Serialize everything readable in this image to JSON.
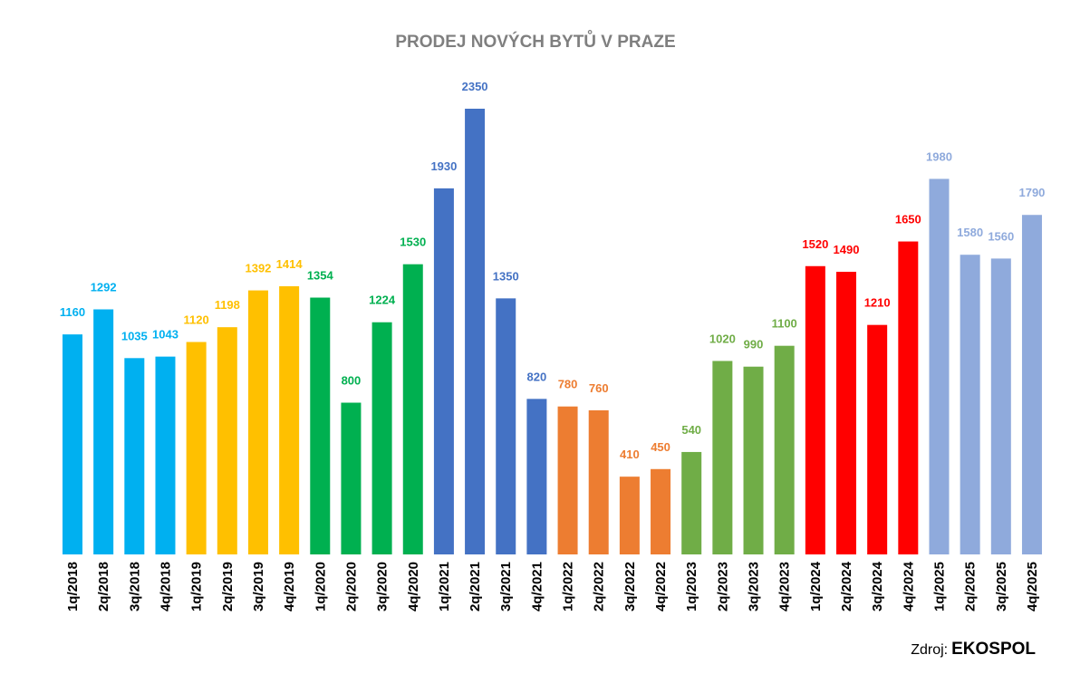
{
  "chart_data": {
    "type": "bar",
    "title": "PRODEJ NOVÝCH BYTŮ V PRAZE",
    "xlabel": "",
    "ylabel": "",
    "ylim": [
      0,
      2350
    ],
    "grid": false,
    "legend": "none",
    "categories": [
      "1q/2018",
      "2q/2018",
      "3q/2018",
      "4q/2018",
      "1q/2019",
      "2q/2019",
      "3q/2019",
      "4q/2019",
      "1q/2020",
      "2q/2020",
      "3q/2020",
      "4q/2020",
      "1q/2021",
      "2q/2021",
      "3q/2021",
      "4q/2021",
      "1q/2022",
      "2q/2022",
      "3q/2022",
      "4q/2022",
      "1q/2023",
      "2q/2023",
      "3q/2023",
      "4q/2023",
      "1q/2024",
      "2q/2024",
      "3q/2024",
      "4q/2024",
      "1q/2025",
      "2q/2025",
      "3q/2025",
      "4q/2025"
    ],
    "values": [
      1160,
      1292,
      1035,
      1043,
      1120,
      1198,
      1392,
      1414,
      1354,
      800,
      1224,
      1530,
      1930,
      2350,
      1350,
      820,
      780,
      760,
      410,
      450,
      540,
      1020,
      990,
      1100,
      1520,
      1490,
      1210,
      1650,
      1980,
      1580,
      1560,
      1790
    ],
    "bar_colors": [
      "#00b0f0",
      "#00b0f0",
      "#00b0f0",
      "#00b0f0",
      "#ffc000",
      "#ffc000",
      "#ffc000",
      "#ffc000",
      "#00b050",
      "#00b050",
      "#00b050",
      "#00b050",
      "#4472c4",
      "#4472c4",
      "#4472c4",
      "#4472c4",
      "#ed7d31",
      "#ed7d31",
      "#ed7d31",
      "#ed7d31",
      "#70ad47",
      "#70ad47",
      "#70ad47",
      "#70ad47",
      "#ff0000",
      "#ff0000",
      "#ff0000",
      "#ff0000",
      "#8faadc",
      "#8faadc",
      "#8faadc",
      "#8faadc"
    ]
  },
  "source": {
    "prefix": "Zdroj:",
    "brand": "EKOSPOL"
  }
}
